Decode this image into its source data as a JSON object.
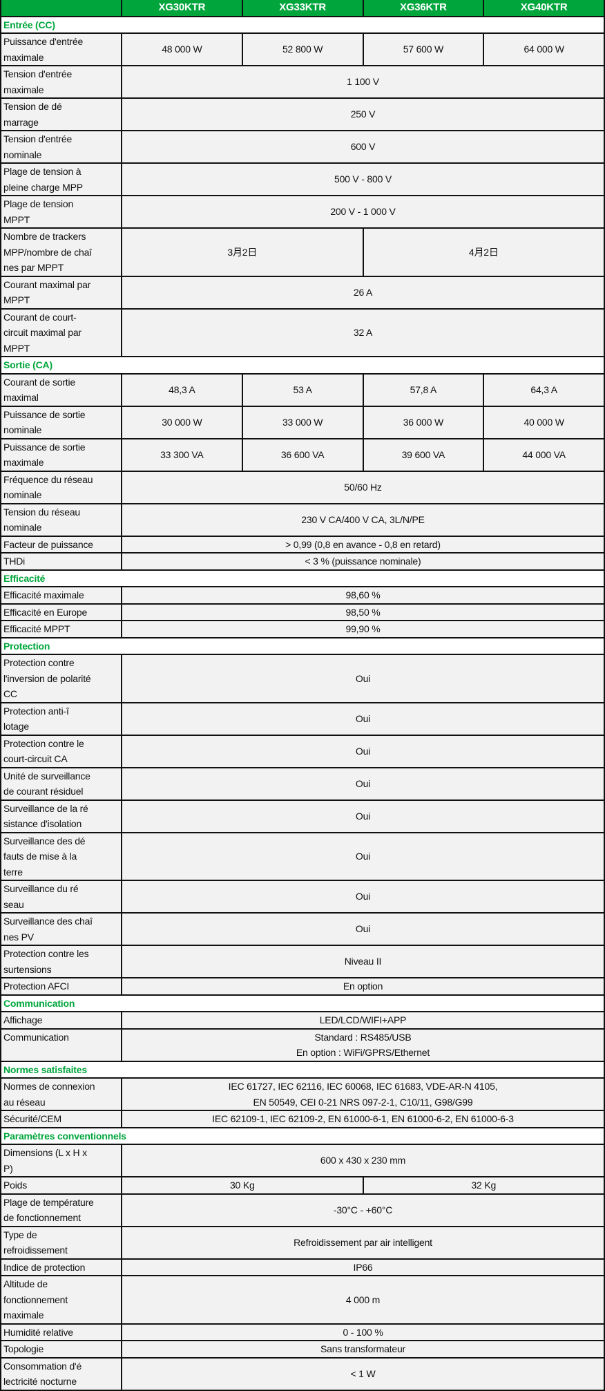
{
  "colors": {
    "header_bg": "#00a63c",
    "section_text": "#00a63c",
    "cell_bg": "#f2f2f2",
    "border": "#111111"
  },
  "header": {
    "models": [
      "XG30KTR",
      "XG33KTR",
      "XG36KTR",
      "XG40KTR"
    ]
  },
  "sections": [
    {
      "title": "Entrée (CC)",
      "rows": [
        {
          "label": "Puissance d'entrée\nmaximale",
          "values": [
            {
              "text": "48 000 W",
              "span": 1
            },
            {
              "text": "52 800 W",
              "span": 1
            },
            {
              "text": "57 600 W",
              "span": 1
            },
            {
              "text": "64 000 W",
              "span": 1
            }
          ]
        },
        {
          "label": "Tension d'entrée\nmaximale",
          "values": [
            {
              "text": "1 100 V",
              "span": 4
            }
          ]
        },
        {
          "label": "Tension de dé\nmarrage",
          "values": [
            {
              "text": "250 V",
              "span": 4
            }
          ]
        },
        {
          "label": "Tension d'entrée\nnominale",
          "values": [
            {
              "text": "600 V",
              "span": 4
            }
          ]
        },
        {
          "label": "Plage de tension à\npleine charge MPP",
          "values": [
            {
              "text": "500 V - 800 V",
              "span": 4
            }
          ]
        },
        {
          "label": "Plage de tension\nMPPT",
          "values": [
            {
              "text": "200 V - 1 000 V",
              "span": 4
            }
          ]
        },
        {
          "label": "Nombre de trackers\nMPP/nombre de chaî\nnes par MPPT",
          "values": [
            {
              "text": "3月2日",
              "span": 2
            },
            {
              "text": "4月2日",
              "span": 2
            }
          ]
        },
        {
          "label": "Courant maximal par\nMPPT",
          "values": [
            {
              "text": "26 A",
              "span": 4
            }
          ]
        },
        {
          "label": "Courant de court-\ncircuit maximal par\nMPPT",
          "values": [
            {
              "text": "32 A",
              "span": 4
            }
          ]
        }
      ]
    },
    {
      "title": "Sortie (CA)",
      "rows": [
        {
          "label": "Courant de sortie\nmaximal",
          "values": [
            {
              "text": "48,3 A",
              "span": 1
            },
            {
              "text": "53 A",
              "span": 1
            },
            {
              "text": "57,8 A",
              "span": 1
            },
            {
              "text": "64,3 A",
              "span": 1
            }
          ]
        },
        {
          "label": "Puissance de sortie\nnominale",
          "values": [
            {
              "text": "30 000 W",
              "span": 1
            },
            {
              "text": "33 000 W",
              "span": 1
            },
            {
              "text": "36 000 W",
              "span": 1
            },
            {
              "text": "40 000 W",
              "span": 1
            }
          ]
        },
        {
          "label": "Puissance de sortie\nmaximale",
          "values": [
            {
              "text": "33 300 VA",
              "span": 1
            },
            {
              "text": "36 600 VA",
              "span": 1
            },
            {
              "text": "39 600 VA",
              "span": 1
            },
            {
              "text": "44 000 VA",
              "span": 1
            }
          ]
        },
        {
          "label": "Fréquence du réseau\nnominale",
          "values": [
            {
              "text": "50/60 Hz",
              "span": 4
            }
          ]
        },
        {
          "label": "Tension du réseau\nnominale",
          "values": [
            {
              "text": "230 V CA/400 V CA, 3L/N/PE",
              "span": 4
            }
          ]
        },
        {
          "label": "Facteur de puissance",
          "values": [
            {
              "text": "> 0,99 (0,8 en avance - 0,8 en retard)",
              "span": 4
            }
          ]
        },
        {
          "label": "THDi",
          "values": [
            {
              "text": "< 3 % (puissance nominale)",
              "span": 4
            }
          ]
        }
      ]
    },
    {
      "title": "Efficacité",
      "rows": [
        {
          "label": "Efficacité maximale",
          "values": [
            {
              "text": "98,60 %",
              "span": 4
            }
          ]
        },
        {
          "label": "Efficacité en Europe",
          "values": [
            {
              "text": "98,50 %",
              "span": 4
            }
          ]
        },
        {
          "label": "Efficacité MPPT",
          "values": [
            {
              "text": "99,90 %",
              "span": 4
            }
          ]
        }
      ]
    },
    {
      "title": "Protection",
      "rows": [
        {
          "label": "Protection contre\nl'inversion de polarité\nCC",
          "values": [
            {
              "text": "Oui",
              "span": 4
            }
          ]
        },
        {
          "label": "Protection anti-î\nlotage",
          "values": [
            {
              "text": "Oui",
              "span": 4
            }
          ]
        },
        {
          "label": "Protection contre le\ncourt-circuit CA",
          "values": [
            {
              "text": "Oui",
              "span": 4
            }
          ]
        },
        {
          "label": "Unité de surveillance\nde courant résiduel",
          "values": [
            {
              "text": "Oui",
              "span": 4
            }
          ]
        },
        {
          "label": "Surveillance de la ré\nsistance d'isolation",
          "values": [
            {
              "text": "Oui",
              "span": 4
            }
          ]
        },
        {
          "label": "Surveillance des dé\nfauts de mise à la\nterre",
          "values": [
            {
              "text": "Oui",
              "span": 4
            }
          ]
        },
        {
          "label": "Surveillance du ré\nseau",
          "values": [
            {
              "text": "Oui",
              "span": 4
            }
          ]
        },
        {
          "label": "Surveillance des chaî\nnes PV",
          "values": [
            {
              "text": "Oui",
              "span": 4
            }
          ]
        },
        {
          "label": "Protection contre les\nsurtensions",
          "values": [
            {
              "text": "Niveau II",
              "span": 4
            }
          ]
        },
        {
          "label": "Protection AFCI",
          "values": [
            {
              "text": "En option",
              "span": 4
            }
          ]
        }
      ]
    },
    {
      "title": "Communication",
      "rows": [
        {
          "label": "Affichage",
          "values": [
            {
              "text": "LED/LCD/WIFI+APP",
              "span": 4
            }
          ]
        },
        {
          "label": "Communication",
          "values": [
            {
              "text": "Standard : RS485/USB\nEn option : WiFi/GPRS/Ethernet",
              "span": 4
            }
          ]
        }
      ]
    },
    {
      "title": "Normes satisfaites",
      "rows": [
        {
          "label": "Normes de connexion\nau réseau",
          "values": [
            {
              "text": "IEC 61727, IEC 62116, IEC 60068, IEC 61683, VDE-AR-N 4105,\nEN 50549, CEI 0-21 NRS 097-2-1, C10/11, G98/G99",
              "span": 4
            }
          ]
        },
        {
          "label": "Sécurité/CEM",
          "values": [
            {
              "text": "IEC 62109-1, IEC 62109-2, EN 61000-6-1, EN 61000-6-2, EN 61000-6-3",
              "span": 4
            }
          ]
        }
      ]
    },
    {
      "title": "Paramètres conventionnels",
      "rows": [
        {
          "label": "Dimensions (L x H x\nP)",
          "values": [
            {
              "text": "600 x 430 x 230 mm",
              "span": 4
            }
          ]
        },
        {
          "label": "Poids",
          "values": [
            {
              "text": "30 Kg",
              "span": 2
            },
            {
              "text": "32 Kg",
              "span": 2
            }
          ]
        },
        {
          "label": "Plage de température\nde fonctionnement",
          "values": [
            {
              "text": "-30°C - +60°C",
              "span": 4
            }
          ]
        },
        {
          "label": "Type de\nrefroidissement",
          "values": [
            {
              "text": "Refroidissement par air intelligent",
              "span": 4
            }
          ]
        },
        {
          "label": "Indice de protection",
          "values": [
            {
              "text": "IP66",
              "span": 4
            }
          ]
        },
        {
          "label": "Altitude de\nfonctionnement\nmaximale",
          "values": [
            {
              "text": "4 000 m",
              "span": 4
            }
          ]
        },
        {
          "label": "Humidité relative",
          "values": [
            {
              "text": "0 - 100 %",
              "span": 4
            }
          ]
        },
        {
          "label": "Topologie",
          "values": [
            {
              "text": "Sans transformateur",
              "span": 4
            }
          ]
        },
        {
          "label": "Consommation d'é\nlectricité nocturne",
          "values": [
            {
              "text": "< 1 W",
              "span": 4
            }
          ]
        }
      ]
    }
  ]
}
